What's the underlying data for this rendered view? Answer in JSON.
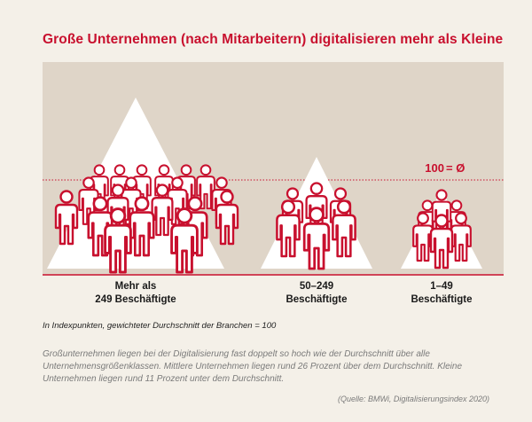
{
  "chart_data": {
    "type": "pictogram",
    "title": "Große Unternehmen (nach Mitarbeitern) digitalisieren mehr als Kleine",
    "reference_line": {
      "value": 100,
      "label_value": "100",
      "label_symbol": "= Ø"
    },
    "categories": [
      {
        "line1": "Mehr als",
        "line2": "249 Beschäftigte",
        "value": 193
      },
      {
        "line1": "50–249",
        "line2": "Beschäftigte",
        "value": 126
      },
      {
        "line1": "1–49",
        "line2": "Beschäftigte",
        "value": 89
      }
    ],
    "note": "In Indexpunkten, gewichteter Durchschnitt der Branchen = 100",
    "description": "Großunternehmen liegen bei der Digitalisierung fast doppelt so hoch wie der Durchschnitt über alle Unternehmensgrößenklassen. Mittlere Unternehmen liegen rund 26 Prozent über dem Durchschnitt. Kleine Unternehmen liegen rund 11 Prozent unter dem Durchschnitt.",
    "source": "(Quelle: BMWi, Digitalisierungsindex 2020)",
    "colors": {
      "accent": "#c8102e",
      "panel": "#dfd5c8",
      "background": "#f4f0e8",
      "triangle": "#ffffff"
    }
  }
}
